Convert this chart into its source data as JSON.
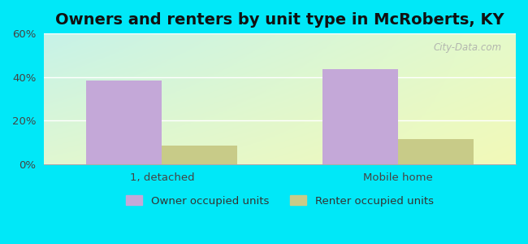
{
  "title": "Owners and renters by unit type in McRoberts, KY",
  "categories": [
    "1, detached",
    "Mobile home"
  ],
  "owner_values": [
    38.5,
    43.5
  ],
  "renter_values": [
    8.5,
    11.5
  ],
  "owner_color": "#c4a8d8",
  "renter_color": "#c8cb88",
  "ylim": [
    0,
    60
  ],
  "yticks": [
    0,
    20,
    40,
    60
  ],
  "ytick_labels": [
    "0%",
    "20%",
    "40%",
    "60%"
  ],
  "background_outer": "#00e8f8",
  "bar_width": 0.32,
  "legend_labels": [
    "Owner occupied units",
    "Renter occupied units"
  ],
  "watermark": "City-Data.com",
  "title_fontsize": 14,
  "axis_fontsize": 9.5,
  "legend_fontsize": 9.5
}
